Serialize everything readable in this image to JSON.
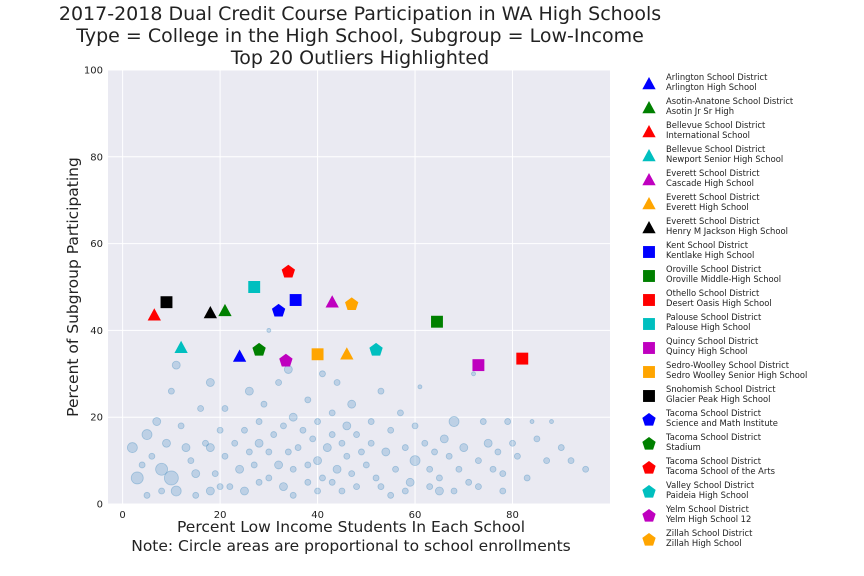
{
  "chart_data": {
    "type": "scatter",
    "title_lines": [
      "2017-2018 Dual Credit Course Participation in WA High Schools",
      "Type = College in the High School, Subgroup = Low-Income",
      "Top 20 Outliers Highlighted"
    ],
    "xlabel_lines": [
      "Percent Low Income Students In Each School",
      "Note: Circle areas are proportional to school enrollments"
    ],
    "ylabel": "Percent of Subgroup Participating",
    "xlim": [
      -3,
      100
    ],
    "ylim": [
      0,
      100
    ],
    "xticks": [
      0,
      20,
      40,
      60,
      80
    ],
    "yticks": [
      0,
      20,
      40,
      60,
      80,
      100
    ],
    "grid": true,
    "legend_position": "outside-right",
    "background_points": {
      "color": "#1f77b4",
      "points": [
        [
          2,
          13,
          5
        ],
        [
          3,
          6,
          6
        ],
        [
          4,
          9,
          3
        ],
        [
          5,
          16,
          5
        ],
        [
          6,
          11,
          3
        ],
        [
          7,
          19,
          4
        ],
        [
          8,
          8,
          6
        ],
        [
          9,
          14,
          4
        ],
        [
          10,
          6,
          7
        ],
        [
          10,
          26,
          3
        ],
        [
          11,
          32,
          4
        ],
        [
          12,
          18,
          3
        ],
        [
          13,
          13,
          4
        ],
        [
          14,
          10,
          3
        ],
        [
          15,
          7,
          4
        ],
        [
          16,
          22,
          3
        ],
        [
          17,
          14,
          3
        ],
        [
          18,
          28,
          4
        ],
        [
          18,
          13,
          4
        ],
        [
          19,
          7,
          3
        ],
        [
          20,
          17,
          3
        ],
        [
          21,
          11,
          3
        ],
        [
          21,
          22,
          3
        ],
        [
          22,
          4,
          3
        ],
        [
          23,
          14,
          3
        ],
        [
          24,
          8,
          4
        ],
        [
          25,
          17,
          3
        ],
        [
          26,
          26,
          4
        ],
        [
          26,
          12,
          3
        ],
        [
          27,
          9,
          3
        ],
        [
          28,
          19,
          3
        ],
        [
          28,
          14,
          4
        ],
        [
          29,
          23,
          3
        ],
        [
          30,
          6,
          3
        ],
        [
          30,
          12,
          3
        ],
        [
          31,
          16,
          3
        ],
        [
          32,
          9,
          4
        ],
        [
          32,
          28,
          3
        ],
        [
          33,
          18,
          3
        ],
        [
          34,
          12,
          3
        ],
        [
          34,
          31,
          4
        ],
        [
          35,
          20,
          4
        ],
        [
          35,
          8,
          3
        ],
        [
          36,
          13,
          3
        ],
        [
          37,
          17,
          3
        ],
        [
          38,
          24,
          3
        ],
        [
          38,
          9,
          3
        ],
        [
          39,
          15,
          3
        ],
        [
          40,
          19,
          3
        ],
        [
          40,
          10,
          4
        ],
        [
          41,
          30,
          3
        ],
        [
          41,
          6,
          3
        ],
        [
          42,
          13,
          4
        ],
        [
          43,
          21,
          3
        ],
        [
          43,
          16,
          3
        ],
        [
          44,
          8,
          4
        ],
        [
          44,
          28,
          3
        ],
        [
          45,
          14,
          3
        ],
        [
          46,
          18,
          4
        ],
        [
          46,
          11,
          3
        ],
        [
          47,
          23,
          4
        ],
        [
          47,
          7,
          3
        ],
        [
          48,
          16,
          3
        ],
        [
          49,
          12,
          3
        ],
        [
          50,
          9,
          3
        ],
        [
          51,
          19,
          3
        ],
        [
          51,
          14,
          3
        ],
        [
          52,
          6,
          3
        ],
        [
          53,
          26,
          3
        ],
        [
          54,
          12,
          4
        ],
        [
          55,
          17,
          3
        ],
        [
          56,
          8,
          3
        ],
        [
          57,
          21,
          3
        ],
        [
          58,
          13,
          3
        ],
        [
          59,
          5,
          4
        ],
        [
          60,
          18,
          3
        ],
        [
          60,
          10,
          5
        ],
        [
          61,
          27,
          2
        ],
        [
          62,
          14,
          3
        ],
        [
          63,
          8,
          3
        ],
        [
          64,
          12,
          3
        ],
        [
          65,
          6,
          3
        ],
        [
          66,
          15,
          4
        ],
        [
          67,
          11,
          3
        ],
        [
          68,
          19,
          5
        ],
        [
          69,
          8,
          3
        ],
        [
          70,
          13,
          4
        ],
        [
          71,
          5,
          3
        ],
        [
          72,
          30,
          2
        ],
        [
          73,
          10,
          3
        ],
        [
          74,
          19,
          3
        ],
        [
          75,
          14,
          4
        ],
        [
          76,
          8,
          3
        ],
        [
          77,
          12,
          3
        ],
        [
          78,
          7,
          3
        ],
        [
          79,
          19,
          3
        ],
        [
          80,
          14,
          3
        ],
        [
          81,
          11,
          3
        ],
        [
          83,
          6,
          3
        ],
        [
          84,
          19,
          2
        ],
        [
          85,
          15,
          3
        ],
        [
          87,
          10,
          3
        ],
        [
          88,
          19,
          2
        ],
        [
          90,
          13,
          3
        ],
        [
          92,
          10,
          3
        ],
        [
          95,
          8,
          3
        ],
        [
          30,
          40,
          2
        ],
        [
          40,
          3,
          3
        ],
        [
          35,
          2,
          3
        ],
        [
          25,
          3,
          4
        ],
        [
          15,
          2,
          3
        ],
        [
          45,
          3,
          3
        ],
        [
          55,
          2,
          3
        ],
        [
          65,
          3,
          4
        ],
        [
          5,
          2,
          3
        ],
        [
          20,
          4,
          3
        ],
        [
          28,
          5,
          3
        ],
        [
          38,
          5,
          3
        ],
        [
          48,
          4,
          3
        ],
        [
          58,
          3,
          3
        ],
        [
          68,
          3,
          3
        ],
        [
          78,
          3,
          3
        ],
        [
          11,
          3,
          5
        ],
        [
          33,
          4,
          4
        ],
        [
          43,
          5,
          3
        ],
        [
          53,
          4,
          3
        ],
        [
          63,
          4,
          3
        ],
        [
          73,
          4,
          3
        ],
        [
          8,
          3,
          3
        ],
        [
          18,
          3,
          4
        ]
      ]
    },
    "series": [
      {
        "name": "Arlington School District\nArlington High School",
        "marker": "triangle",
        "color": "#0000ff",
        "x": 24,
        "y": 34
      },
      {
        "name": "Asotin-Anatone School District\nAsotin Jr Sr High",
        "marker": "triangle",
        "color": "#008000",
        "x": 21,
        "y": 44.5
      },
      {
        "name": "Bellevue School District\nInternational School",
        "marker": "triangle",
        "color": "#ff0000",
        "x": 6.5,
        "y": 43.5
      },
      {
        "name": "Bellevue School District\nNewport Senior High School",
        "marker": "triangle",
        "color": "#00bfbf",
        "x": 12,
        "y": 36
      },
      {
        "name": "Everett School District\nCascade High School",
        "marker": "triangle",
        "color": "#bf00bf",
        "x": 43,
        "y": 46.5
      },
      {
        "name": "Everett School District\nEverett High School",
        "marker": "triangle",
        "color": "#ffa500",
        "x": 46,
        "y": 34.5
      },
      {
        "name": "Everett School District\nHenry M Jackson High School",
        "marker": "triangle",
        "color": "#000000",
        "x": 18,
        "y": 44
      },
      {
        "name": "Kent School District\nKentlake High School",
        "marker": "square",
        "color": "#0000ff",
        "x": 35.5,
        "y": 47
      },
      {
        "name": "Oroville School District\nOroville Middle-High School",
        "marker": "square",
        "color": "#008000",
        "x": 64.5,
        "y": 42
      },
      {
        "name": "Othello School District\nDesert Oasis High School",
        "marker": "square",
        "color": "#ff0000",
        "x": 82,
        "y": 33.5
      },
      {
        "name": "Palouse School District\nPalouse High School",
        "marker": "square",
        "color": "#00bfbf",
        "x": 27,
        "y": 50
      },
      {
        "name": "Quincy School District\nQuincy High School",
        "marker": "square",
        "color": "#bf00bf",
        "x": 73,
        "y": 32
      },
      {
        "name": "Sedro-Woolley School District\nSedro Woolley Senior High School",
        "marker": "square",
        "color": "#ffa500",
        "x": 40,
        "y": 34.5
      },
      {
        "name": "Snohomish School District\nGlacier Peak High School",
        "marker": "square",
        "color": "#000000",
        "x": 9,
        "y": 46.5
      },
      {
        "name": "Tacoma School District\nScience and Math Institute",
        "marker": "pentagon",
        "color": "#0000ff",
        "x": 32,
        "y": 44.5
      },
      {
        "name": "Tacoma School District\nStadium",
        "marker": "pentagon",
        "color": "#008000",
        "x": 28,
        "y": 35.5
      },
      {
        "name": "Tacoma School District\nTacoma School of the Arts",
        "marker": "pentagon",
        "color": "#ff0000",
        "x": 34,
        "y": 53.5
      },
      {
        "name": "Valley School District\nPaideia High School",
        "marker": "pentagon",
        "color": "#00bfbf",
        "x": 52,
        "y": 35.5
      },
      {
        "name": "Yelm School District\nYelm High School 12",
        "marker": "pentagon",
        "color": "#bf00bf",
        "x": 33.5,
        "y": 33
      },
      {
        "name": "Zillah School District\nZillah High School",
        "marker": "pentagon",
        "color": "#ffa500",
        "x": 47,
        "y": 46
      }
    ]
  }
}
